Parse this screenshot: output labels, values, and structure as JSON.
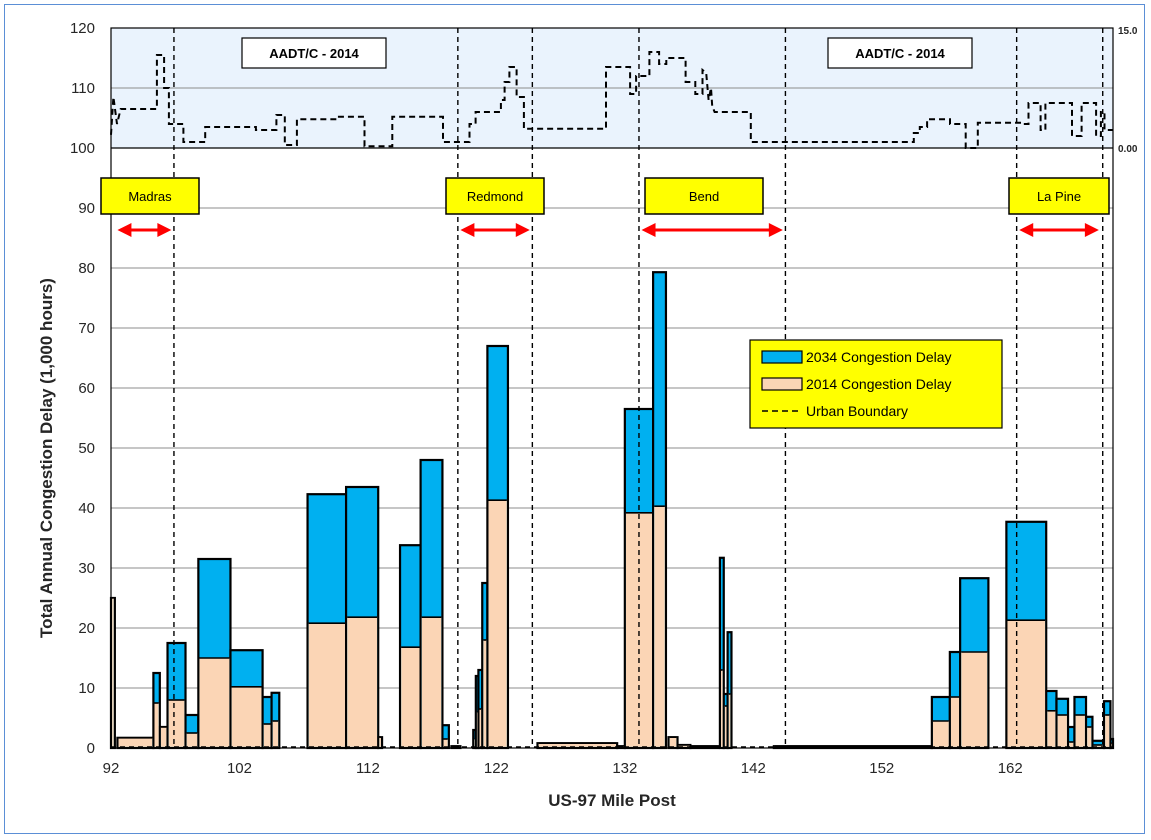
{
  "chart_data": [
    {
      "type": "area",
      "xlabel": "US-97 Mile Post",
      "ylabel": "Total Annual  Congestion Delay (1,000 hours)",
      "xlim": [
        92,
        170
      ],
      "ylim": [
        0,
        120
      ],
      "x_ticks": [
        "92",
        "102",
        "112",
        "122",
        "132",
        "142",
        "152",
        "162"
      ],
      "y_ticks": [
        "0",
        "10",
        "20",
        "30",
        "40",
        "50",
        "60",
        "70",
        "80",
        "90",
        "100",
        "110",
        "120"
      ],
      "grid": true,
      "legend_position": "center-right",
      "colors": {
        "delay_2034": "#00b0f0",
        "delay_2014": "#fbd5b5",
        "urban": "#000000",
        "city_box": "#ffff00",
        "arrow": "#ff0000",
        "inset_bg": "#eaf3fd"
      },
      "series": [
        {
          "name": "2034 Congestion Delay",
          "segments": [
            [
              92.0,
              92.3,
              25
            ],
            [
              92.5,
              95.3,
              1.7
            ],
            [
              95.3,
              95.8,
              12.5
            ],
            [
              95.8,
              96.4,
              3.5
            ],
            [
              96.4,
              97.8,
              17.5
            ],
            [
              97.8,
              98.8,
              5.5
            ],
            [
              98.8,
              101.3,
              31.5
            ],
            [
              101.3,
              103.8,
              16.3
            ],
            [
              103.8,
              104.5,
              8.5
            ],
            [
              104.5,
              105.1,
              9.2
            ],
            [
              107.3,
              110.3,
              42.3
            ],
            [
              110.3,
              112.8,
              43.5
            ],
            [
              112.8,
              113.1,
              1.8
            ],
            [
              114.5,
              116.1,
              33.8
            ],
            [
              116.1,
              117.8,
              48
            ],
            [
              117.8,
              118.3,
              3.8
            ],
            [
              118.5,
              119.2,
              0.3
            ],
            [
              120.2,
              120.4,
              3
            ],
            [
              120.4,
              120.6,
              12
            ],
            [
              120.6,
              120.9,
              13
            ],
            [
              120.9,
              121.3,
              27.5
            ],
            [
              121.3,
              122.9,
              67
            ],
            [
              125.2,
              131.4,
              0.8
            ],
            [
              131.4,
              132.0,
              0.3
            ],
            [
              132.0,
              134.2,
              56.5
            ],
            [
              134.2,
              135.2,
              79.3
            ],
            [
              135.4,
              136.1,
              1.8
            ],
            [
              136.1,
              137.1,
              0.5
            ],
            [
              137.1,
              139.3,
              0.3
            ],
            [
              139.4,
              139.7,
              31.7
            ],
            [
              139.7,
              140.0,
              9
            ],
            [
              140.0,
              140.3,
              19.3
            ],
            [
              143.6,
              155.9,
              0.3
            ],
            [
              155.9,
              157.3,
              8.5
            ],
            [
              157.3,
              158.1,
              16
            ],
            [
              158.1,
              160.3,
              28.3
            ],
            [
              161.7,
              164.8,
              37.7
            ],
            [
              164.8,
              165.6,
              9.5
            ],
            [
              165.6,
              166.5,
              8.2
            ],
            [
              166.5,
              167.0,
              3.5
            ],
            [
              167.0,
              167.9,
              8.5
            ],
            [
              167.9,
              168.4,
              5.2
            ],
            [
              168.4,
              169.3,
              1.2
            ],
            [
              169.3,
              169.8,
              7.8
            ],
            [
              169.8,
              170.0,
              1.5
            ]
          ]
        },
        {
          "name": "2014 Congestion Delay",
          "segments": [
            [
              92.0,
              92.3,
              25
            ],
            [
              92.5,
              95.3,
              1.7
            ],
            [
              95.3,
              95.8,
              7.5
            ],
            [
              95.8,
              96.4,
              3.5
            ],
            [
              96.4,
              97.8,
              8
            ],
            [
              97.8,
              98.8,
              2.5
            ],
            [
              98.8,
              101.3,
              15
            ],
            [
              101.3,
              103.8,
              10.2
            ],
            [
              103.8,
              104.5,
              4
            ],
            [
              104.5,
              105.1,
              4.5
            ],
            [
              107.3,
              110.3,
              20.8
            ],
            [
              110.3,
              112.8,
              21.8
            ],
            [
              112.8,
              113.1,
              1.8
            ],
            [
              114.5,
              116.1,
              16.8
            ],
            [
              116.1,
              117.8,
              21.8
            ],
            [
              117.8,
              118.3,
              1.5
            ],
            [
              118.5,
              119.2,
              0.3
            ],
            [
              120.2,
              120.4,
              1.5
            ],
            [
              120.4,
              120.6,
              6
            ],
            [
              120.6,
              120.9,
              6.5
            ],
            [
              120.9,
              121.3,
              18
            ],
            [
              121.3,
              122.9,
              41.3
            ],
            [
              125.2,
              131.4,
              0.8
            ],
            [
              131.4,
              132.0,
              0.3
            ],
            [
              132.0,
              134.2,
              39.2
            ],
            [
              134.2,
              135.2,
              40.3
            ],
            [
              135.4,
              136.1,
              1.8
            ],
            [
              136.1,
              137.1,
              0.5
            ],
            [
              137.1,
              139.3,
              0.3
            ],
            [
              139.4,
              139.7,
              13
            ],
            [
              139.7,
              140.0,
              7
            ],
            [
              140.0,
              140.3,
              9
            ],
            [
              143.6,
              155.9,
              0.3
            ],
            [
              155.9,
              157.3,
              4.5
            ],
            [
              157.3,
              158.1,
              8.5
            ],
            [
              158.1,
              160.3,
              16
            ],
            [
              161.7,
              164.8,
              21.3
            ],
            [
              164.8,
              165.6,
              6.2
            ],
            [
              165.6,
              166.5,
              5.5
            ],
            [
              166.5,
              167.0,
              1
            ],
            [
              167.0,
              167.9,
              5.5
            ],
            [
              167.9,
              168.4,
              3.5
            ],
            [
              168.4,
              169.3,
              0.5
            ],
            [
              169.3,
              169.8,
              5.5
            ],
            [
              169.8,
              170.0,
              0.8
            ]
          ]
        },
        {
          "name": "Urban Boundary",
          "x": [
            92.0,
            96.9,
            119.0,
            124.8,
            133.1,
            144.5,
            162.5,
            169.2
          ]
        }
      ],
      "cities": [
        {
          "name": "Madras",
          "arrow_from": 92.5,
          "arrow_to": 96.7
        },
        {
          "name": "Redmond",
          "arrow_from": 119.2,
          "arrow_to": 124.6
        },
        {
          "name": "Bend",
          "arrow_from": 133.3,
          "arrow_to": 144.3
        },
        {
          "name": "La Pine",
          "arrow_from": 162.7,
          "arrow_to": 168.9
        }
      ]
    },
    {
      "type": "line",
      "labels": [
        "AADT/C - 2014",
        "AADT/C - 2014"
      ],
      "y2_ticks": [
        "15.0",
        "0.00"
      ],
      "y2lim": [
        0,
        15
      ],
      "points": [
        [
          92.0,
          102.2
        ],
        [
          92.2,
          108.5
        ],
        [
          92.5,
          104.0
        ],
        [
          92.8,
          106.5
        ],
        [
          95.8,
          106.5
        ],
        [
          95.8,
          115.5
        ],
        [
          96.4,
          115.5
        ],
        [
          96.4,
          110.0
        ],
        [
          96.8,
          110.0
        ],
        [
          96.8,
          104.0
        ],
        [
          98.0,
          104.0
        ],
        [
          98.0,
          101.0
        ],
        [
          99.8,
          101.0
        ],
        [
          99.8,
          103.5
        ],
        [
          104.0,
          103.5
        ],
        [
          104.0,
          103.0
        ],
        [
          105.7,
          103.0
        ],
        [
          105.7,
          105.5
        ],
        [
          106.4,
          105.5
        ],
        [
          106.4,
          100.5
        ],
        [
          107.4,
          100.5
        ],
        [
          107.4,
          104.8
        ],
        [
          110.7,
          104.8
        ],
        [
          110.7,
          105.2
        ],
        [
          113.0,
          105.2
        ],
        [
          113.0,
          100.3
        ],
        [
          115.3,
          100.3
        ],
        [
          115.3,
          105.2
        ],
        [
          119.5,
          105.2
        ],
        [
          119.5,
          101.0
        ],
        [
          121.7,
          101.0
        ],
        [
          121.7,
          104.0
        ],
        [
          122.2,
          104.0
        ],
        [
          122.2,
          106.0
        ],
        [
          124.3,
          106.0
        ],
        [
          124.3,
          108.0
        ],
        [
          124.6,
          108.0
        ],
        [
          124.6,
          111.0
        ],
        [
          125.0,
          111.0
        ],
        [
          125.0,
          113.5
        ],
        [
          125.6,
          113.5
        ],
        [
          125.6,
          108.5
        ],
        [
          126.2,
          108.5
        ],
        [
          126.2,
          103.2
        ],
        [
          133.0,
          103.2
        ],
        [
          133.0,
          113.5
        ],
        [
          135.0,
          113.5
        ],
        [
          135.0,
          109.0
        ],
        [
          135.5,
          109.0
        ],
        [
          135.5,
          112.0
        ],
        [
          136.6,
          112.0
        ],
        [
          136.6,
          116.0
        ],
        [
          137.4,
          116.0
        ],
        [
          137.4,
          114.0
        ],
        [
          138.0,
          114.0
        ],
        [
          138.0,
          115.0
        ],
        [
          139.6,
          115.0
        ],
        [
          139.6,
          111.0
        ],
        [
          140.4,
          111.0
        ],
        [
          140.4,
          109.0
        ],
        [
          141.0,
          109.0
        ],
        [
          141.0,
          113.0
        ],
        [
          141.3,
          112.5
        ],
        [
          141.5,
          108.0
        ],
        [
          141.7,
          110.0
        ],
        [
          141.8,
          107.0
        ],
        [
          142.0,
          106.0
        ],
        [
          145.0,
          106.0
        ],
        [
          145.0,
          101.0
        ],
        [
          158.5,
          101.0
        ],
        [
          158.5,
          102.5
        ],
        [
          159.0,
          102.5
        ],
        [
          159.0,
          103.5
        ],
        [
          159.6,
          103.5
        ],
        [
          159.6,
          104.8
        ],
        [
          161.5,
          104.8
        ],
        [
          161.5,
          104.0
        ],
        [
          162.8,
          104.0
        ],
        [
          162.8,
          100.0
        ],
        [
          163.8,
          100.0
        ],
        [
          163.8,
          104.2
        ],
        [
          167.5,
          104.2
        ],
        [
          167.5,
          104.0
        ],
        [
          168.0,
          104.0
        ],
        [
          168.0,
          107.5
        ],
        [
          169.0,
          107.5
        ],
        [
          169.0,
          103.0
        ],
        [
          169.4,
          103.0
        ],
        [
          169.4,
          107.5
        ],
        [
          171.6,
          107.5
        ],
        [
          171.6,
          102.0
        ],
        [
          172.4,
          102.0
        ],
        [
          172.4,
          107.5
        ],
        [
          173.6,
          107.5
        ],
        [
          173.6,
          102.0
        ],
        [
          174.0,
          102.0
        ],
        [
          174.0,
          106.0
        ],
        [
          174.3,
          106.0
        ],
        [
          174.3,
          103.0
        ],
        [
          175.0,
          103.0
        ]
      ]
    }
  ],
  "legend": {
    "entries": [
      "2034 Congestion Delay",
      "2014 Congestion Delay",
      "Urban Boundary"
    ]
  }
}
